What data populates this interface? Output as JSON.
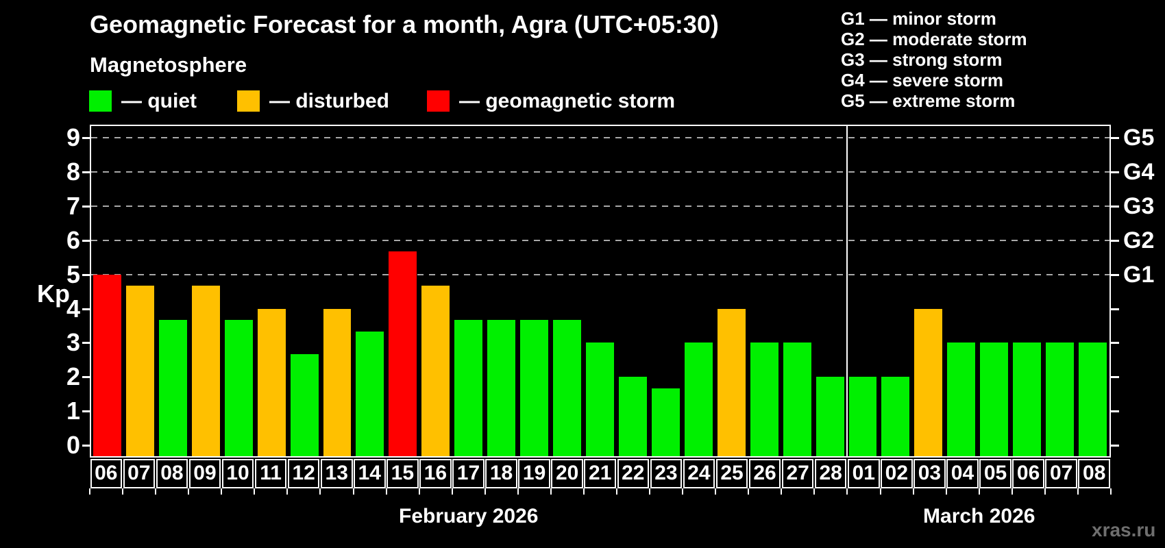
{
  "header": {
    "title": "Geomagnetic Forecast for a month, Agra (UTC+05:30)",
    "subtitle": "Magnetosphere"
  },
  "legend": {
    "items": [
      {
        "state": "quiet",
        "label": "— quiet"
      },
      {
        "state": "disturbed",
        "label": "— disturbed"
      },
      {
        "state": "storm",
        "label": "— geomagnetic storm"
      }
    ]
  },
  "g_scale_legend": {
    "items": [
      "G1 — minor storm",
      "G2 — moderate storm",
      "G3 — strong storm",
      "G4 — severe storm",
      "G5 — extreme storm"
    ]
  },
  "watermark": "xras.ru",
  "chart_data": {
    "type": "bar",
    "title": "Geomagnetic Forecast for a month, Agra (UTC+05:30)",
    "ylabel": "Kp",
    "ylim": [
      0,
      9.4
    ],
    "yticks": [
      0,
      1,
      2,
      3,
      4,
      5,
      6,
      7,
      8,
      9
    ],
    "grid_dashed_at": [
      5,
      6,
      7,
      8,
      9
    ],
    "legend_position": "top-left",
    "g_levels": [
      {
        "kp": 5,
        "label": "G1"
      },
      {
        "kp": 6,
        "label": "G2"
      },
      {
        "kp": 7,
        "label": "G3"
      },
      {
        "kp": 8,
        "label": "G4"
      },
      {
        "kp": 9,
        "label": "G5"
      }
    ],
    "state_colors": {
      "quiet": "#00f000",
      "disturbed": "#ffc000",
      "storm": "#ff0000"
    },
    "months": [
      {
        "label": "February 2026",
        "days": 23
      },
      {
        "label": "March 2026",
        "days": 8
      }
    ],
    "points": [
      {
        "date": "06",
        "kp": 5.0,
        "state": "storm"
      },
      {
        "date": "07",
        "kp": 4.67,
        "state": "disturbed"
      },
      {
        "date": "08",
        "kp": 3.67,
        "state": "quiet"
      },
      {
        "date": "09",
        "kp": 4.67,
        "state": "disturbed"
      },
      {
        "date": "10",
        "kp": 3.67,
        "state": "quiet"
      },
      {
        "date": "11",
        "kp": 4.0,
        "state": "disturbed"
      },
      {
        "date": "12",
        "kp": 2.67,
        "state": "quiet"
      },
      {
        "date": "13",
        "kp": 4.0,
        "state": "disturbed"
      },
      {
        "date": "14",
        "kp": 3.33,
        "state": "quiet"
      },
      {
        "date": "15",
        "kp": 5.67,
        "state": "storm"
      },
      {
        "date": "16",
        "kp": 4.67,
        "state": "disturbed"
      },
      {
        "date": "17",
        "kp": 3.67,
        "state": "quiet"
      },
      {
        "date": "18",
        "kp": 3.67,
        "state": "quiet"
      },
      {
        "date": "19",
        "kp": 3.67,
        "state": "quiet"
      },
      {
        "date": "20",
        "kp": 3.67,
        "state": "quiet"
      },
      {
        "date": "21",
        "kp": 3.0,
        "state": "quiet"
      },
      {
        "date": "22",
        "kp": 2.0,
        "state": "quiet"
      },
      {
        "date": "23",
        "kp": 1.67,
        "state": "quiet"
      },
      {
        "date": "24",
        "kp": 3.0,
        "state": "quiet"
      },
      {
        "date": "25",
        "kp": 4.0,
        "state": "disturbed"
      },
      {
        "date": "26",
        "kp": 3.0,
        "state": "quiet"
      },
      {
        "date": "27",
        "kp": 3.0,
        "state": "quiet"
      },
      {
        "date": "28",
        "kp": 2.0,
        "state": "quiet"
      },
      {
        "date": "01",
        "kp": 2.0,
        "state": "quiet"
      },
      {
        "date": "02",
        "kp": 2.0,
        "state": "quiet"
      },
      {
        "date": "03",
        "kp": 4.0,
        "state": "disturbed"
      },
      {
        "date": "04",
        "kp": 3.0,
        "state": "quiet"
      },
      {
        "date": "05",
        "kp": 3.0,
        "state": "quiet"
      },
      {
        "date": "06",
        "kp": 3.0,
        "state": "quiet"
      },
      {
        "date": "07",
        "kp": 3.0,
        "state": "quiet"
      },
      {
        "date": "08",
        "kp": 3.0,
        "state": "quiet"
      }
    ]
  }
}
